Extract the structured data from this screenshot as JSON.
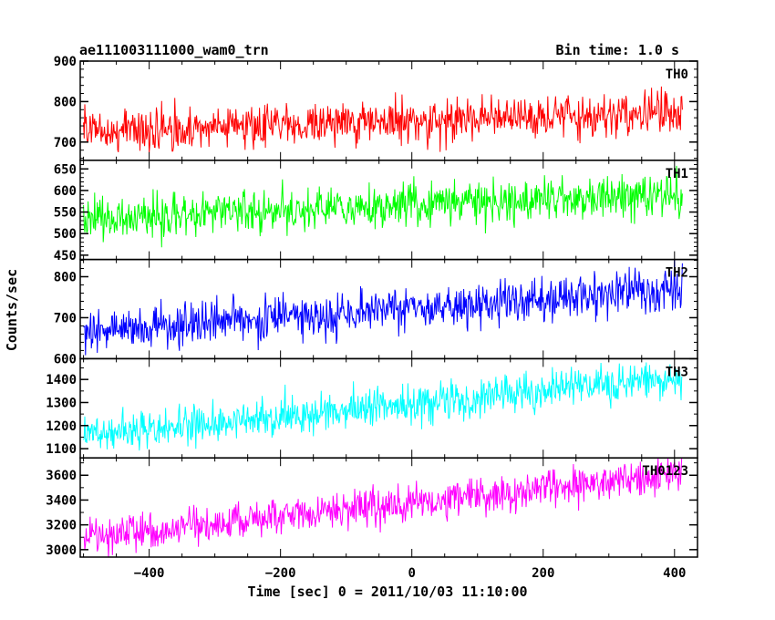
{
  "header": {
    "title": "ae111003111000_wam0_trn",
    "bin_time": "Bin time: 1.0 s"
  },
  "axes": {
    "xlabel": "Time [sec] 0 = 2011/10/03 11:10:00",
    "ylabel": "Counts/sec"
  },
  "chart_data": {
    "type": "line",
    "title": "ae111003111000_wam0_trn",
    "subtitle": "Bin time: 1.0 s",
    "xlabel": "Time [sec] 0 = 2011/10/03 11:10:00",
    "ylabel": "Counts/sec",
    "xlim": [
      -505,
      435
    ],
    "x_start": -500,
    "x_end": 412,
    "x_step": 1,
    "xticks": [
      -400,
      -200,
      0,
      200,
      400
    ],
    "grid": false,
    "legend": "none (panel labels at top-right of each panel)",
    "series": [
      {
        "name": "TH0",
        "color": "#ff0000",
        "ylim": [
          655,
          900
        ],
        "yticks": [
          700,
          800,
          900
        ],
        "trend_start": 728,
        "trend_end": 775,
        "noise_sd": 27
      },
      {
        "name": "TH1",
        "color": "#00ff00",
        "ylim": [
          440,
          670
        ],
        "yticks": [
          450,
          500,
          550,
          600,
          650
        ],
        "trend_start": 533,
        "trend_end": 592,
        "noise_sd": 24
      },
      {
        "name": "TH2",
        "color": "#0000ff",
        "ylim": [
          600,
          842
        ],
        "yticks": [
          600,
          700,
          800
        ],
        "trend_start": 665,
        "trend_end": 770,
        "noise_sd": 28
      },
      {
        "name": "TH3",
        "color": "#00ffff",
        "ylim": [
          1060,
          1490
        ],
        "yticks": [
          1100,
          1200,
          1300,
          1400
        ],
        "trend_start": 1160,
        "trend_end": 1405,
        "noise_sd": 42
      },
      {
        "name": "TH0123",
        "color": "#ff00ff",
        "ylim": [
          2940,
          3740
        ],
        "yticks": [
          3000,
          3200,
          3400,
          3600
        ],
        "trend_start": 3090,
        "trend_end": 3620,
        "noise_sd": 75
      }
    ]
  }
}
